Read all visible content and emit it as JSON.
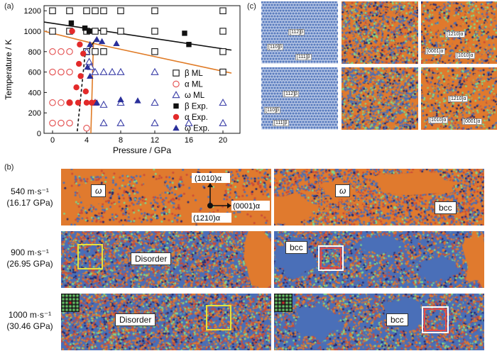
{
  "panels": {
    "a": "(a)",
    "b": "(b)",
    "c": "(c)"
  },
  "chart_data": {
    "type": "scatter",
    "xlabel": "Pressure / GPa",
    "ylabel": "Temperature / K",
    "xlim": [
      -1,
      22
    ],
    "ylim": [
      0,
      1250
    ],
    "xticks": [
      0,
      4,
      8,
      12,
      16,
      20
    ],
    "yticks": [
      0,
      200,
      400,
      600,
      800,
      1000,
      1200
    ],
    "grid": false,
    "legend_position": "right",
    "series": [
      {
        "name": "β ML",
        "marker": "open-square",
        "color": "#111111",
        "points": [
          [
            0,
            1200
          ],
          [
            2,
            1200
          ],
          [
            4,
            1200
          ],
          [
            5,
            1200
          ],
          [
            6,
            1200
          ],
          [
            8,
            1200
          ],
          [
            12,
            1200
          ],
          [
            20,
            1200
          ],
          [
            0,
            1000
          ],
          [
            2,
            1000
          ],
          [
            4,
            1000
          ],
          [
            5,
            1000
          ],
          [
            6,
            1000
          ],
          [
            8,
            1000
          ],
          [
            12,
            1000
          ],
          [
            20,
            1000
          ],
          [
            4,
            800
          ],
          [
            5,
            800
          ],
          [
            6,
            800
          ],
          [
            12,
            800
          ],
          [
            20,
            800
          ],
          [
            20,
            600
          ]
        ]
      },
      {
        "name": "α ML",
        "marker": "open-circle",
        "color": "#e34b4b",
        "points": [
          [
            0,
            800
          ],
          [
            1,
            800
          ],
          [
            2,
            800
          ],
          [
            0,
            600
          ],
          [
            1,
            600
          ],
          [
            2,
            600
          ],
          [
            0,
            300
          ],
          [
            1,
            300
          ],
          [
            2,
            300
          ],
          [
            0,
            100
          ],
          [
            1,
            100
          ],
          [
            2,
            100
          ],
          [
            4,
            50
          ]
        ]
      },
      {
        "name": "ω ML",
        "marker": "open-triangle",
        "color": "#3b3fa8",
        "points": [
          [
            4,
            800
          ],
          [
            4.3,
            700
          ],
          [
            4.5,
            650
          ],
          [
            5,
            600
          ],
          [
            6,
            600
          ],
          [
            7,
            600
          ],
          [
            8,
            600
          ],
          [
            12,
            600
          ],
          [
            5,
            300
          ],
          [
            6,
            280
          ],
          [
            8,
            300
          ],
          [
            12,
            300
          ],
          [
            20,
            300
          ],
          [
            6,
            100
          ],
          [
            8,
            100
          ],
          [
            12,
            100
          ],
          [
            16,
            100
          ],
          [
            20,
            100
          ]
        ]
      },
      {
        "name": "β Exp.",
        "marker": "filled-square",
        "color": "#111111",
        "points": [
          [
            2.2,
            1080
          ],
          [
            3.8,
            1030
          ],
          [
            4.3,
            1000
          ],
          [
            15.5,
            980
          ],
          [
            16,
            870
          ]
        ]
      },
      {
        "name": "α Exp.",
        "marker": "filled-circle",
        "color": "#e32a2a",
        "points": [
          [
            2.3,
            1000
          ],
          [
            3.2,
            870
          ],
          [
            3.6,
            780
          ],
          [
            3.1,
            680
          ],
          [
            3.3,
            560
          ],
          [
            2.8,
            450
          ],
          [
            3.9,
            410
          ],
          [
            2,
            300
          ],
          [
            3,
            300
          ],
          [
            4,
            300
          ],
          [
            4.6,
            300
          ],
          [
            5,
            300
          ]
        ]
      },
      {
        "name": "ω Exp.",
        "marker": "filled-triangle",
        "color": "#2a2f9a",
        "points": [
          [
            4.4,
            870
          ],
          [
            5.2,
            920
          ],
          [
            5.8,
            900
          ],
          [
            7.5,
            880
          ],
          [
            4.1,
            650
          ],
          [
            4.4,
            560
          ],
          [
            5.2,
            300
          ],
          [
            8,
            330
          ],
          [
            10,
            320
          ]
        ]
      }
    ],
    "lines": [
      {
        "color": "#111111",
        "points": [
          [
            -1,
            1090
          ],
          [
            21,
            815
          ]
        ]
      },
      {
        "color": "#e07b26",
        "points": [
          [
            -1,
            1000
          ],
          [
            4.8,
            880
          ]
        ]
      },
      {
        "color": "#e07b26",
        "points": [
          [
            4.8,
            880
          ],
          [
            21,
            590
          ]
        ]
      },
      {
        "color": "#e07b26",
        "points": [
          [
            4.8,
            880
          ],
          [
            4.5,
            0
          ]
        ]
      },
      {
        "color": "#111111",
        "points": [
          [
            3.8,
            760
          ],
          [
            5.2,
            940
          ]
        ]
      },
      {
        "color": "#111111",
        "dash": "dashed",
        "points": [
          [
            2.9,
            20
          ],
          [
            3.8,
            760
          ]
        ]
      }
    ]
  },
  "panel_b": {
    "rows": [
      {
        "speed": "540 m·s⁻¹",
        "pressure": "(16.17 GPa)"
      },
      {
        "speed": "900 m·s⁻¹",
        "pressure": "(26.95 GPa)"
      },
      {
        "speed": "1000 m·s⁻¹",
        "pressure": "(30.46 GPa)"
      }
    ],
    "omega": "ω",
    "bcc": "bcc",
    "disorder": "Disorder",
    "axes": {
      "up": "(1010)α",
      "right": "(0001)α",
      "down": "(1210)α"
    }
  },
  "panel_c": {
    "top_left": [
      "[112]β",
      "[110]β",
      "[111]β"
    ],
    "bottom_left": [
      "[112]β",
      "[110]β",
      "[111]β"
    ],
    "top_right": [
      "[1210]α",
      "[0001]α",
      "[1010]α"
    ],
    "bottom_right": [
      "[1210]α",
      "[1010]α",
      "[0001]α"
    ]
  },
  "colors": {
    "orange": "#e07a2e",
    "blue": "#4a6fb8",
    "green": "#7fd88a",
    "navy": "#252a70"
  }
}
